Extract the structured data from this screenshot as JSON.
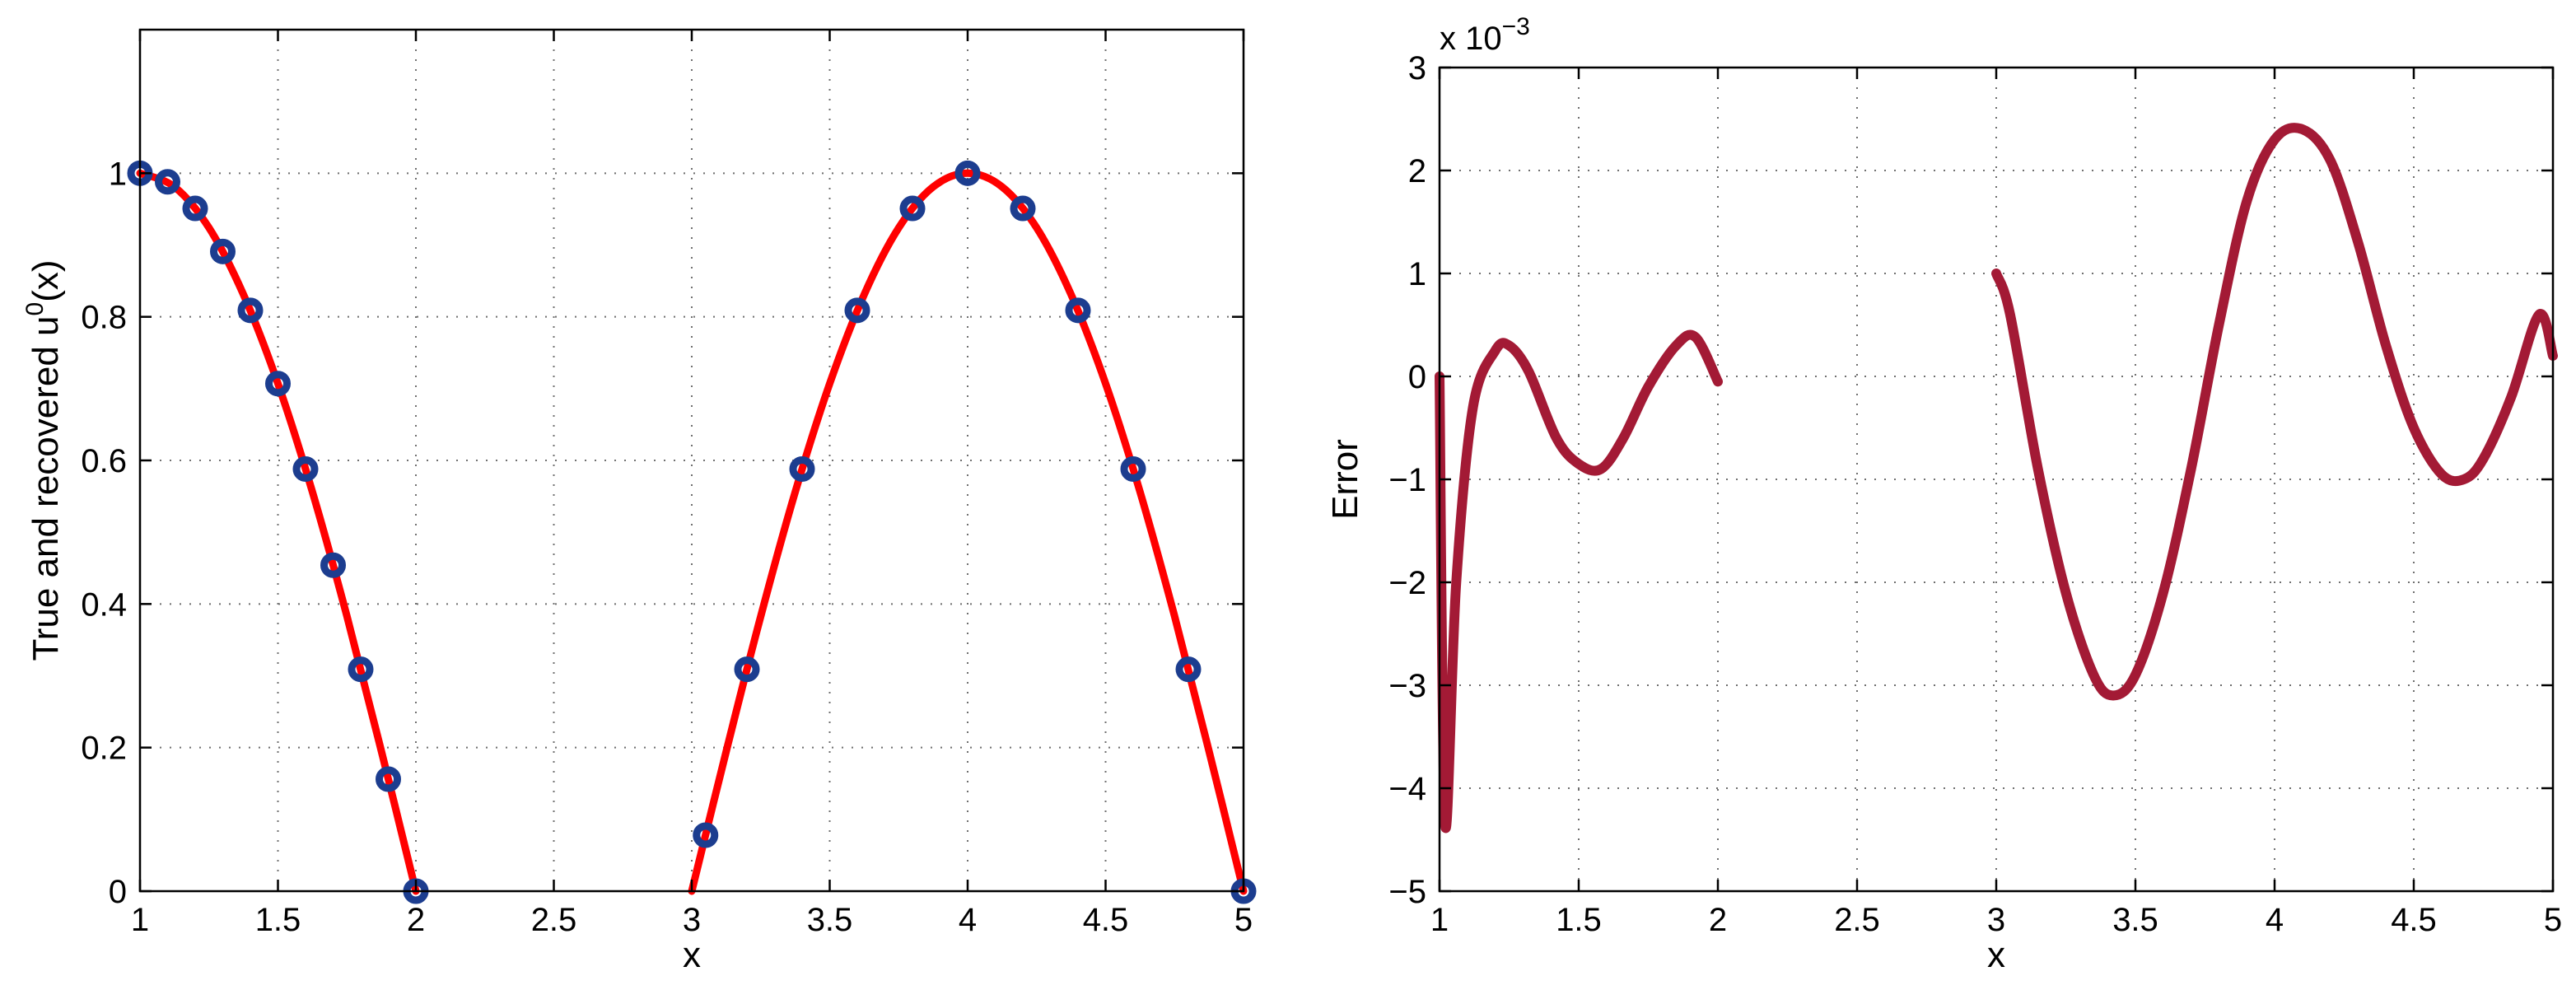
{
  "chart_data": [
    {
      "type": "line",
      "title": "",
      "xlabel": "x",
      "ylabel": "True and recovered u",
      "ylabel_sup": "0",
      "ylabel_suffix": "(x)",
      "xlim": [
        1,
        5
      ],
      "ylim": [
        0,
        1.2
      ],
      "xticks": [
        1,
        1.5,
        2,
        2.5,
        3,
        3.5,
        4,
        4.5,
        5
      ],
      "xtick_labels": [
        "1",
        "1.5",
        "2",
        "2.5",
        "3",
        "3.5",
        "4",
        "4.5",
        "5"
      ],
      "yticks": [
        0,
        0.2,
        0.4,
        0.6,
        0.8,
        1
      ],
      "ytick_labels": [
        "0",
        "0.2",
        "0.4",
        "0.6",
        "0.8",
        "1"
      ],
      "grid": true,
      "series": [
        {
          "style": "line",
          "color": "#ff0000",
          "segments": [
            {
              "x": [
                1,
                1.125,
                1.25,
                1.375,
                1.5,
                1.625,
                1.75,
                1.875,
                2
              ],
              "y": [
                1,
                0.981,
                0.924,
                0.831,
                0.707,
                0.556,
                0.383,
                0.195,
                0
              ]
            },
            {
              "x": [
                3,
                3.125,
                3.25,
                3.375,
                3.5,
                3.625,
                3.75,
                3.875,
                4,
                4.125,
                4.25,
                4.375,
                4.5,
                4.625,
                4.75,
                4.875,
                5
              ],
              "y": [
                0,
                0.195,
                0.383,
                0.556,
                0.707,
                0.831,
                0.924,
                0.981,
                1,
                0.981,
                0.924,
                0.831,
                0.707,
                0.556,
                0.383,
                0.195,
                0
              ]
            }
          ]
        },
        {
          "style": "markers",
          "marker": "circle",
          "color": "#1c3d8f",
          "segments": [
            {
              "x": [
                1,
                1.1,
                1.2,
                1.3,
                1.4,
                1.5,
                1.6,
                1.7,
                1.8,
                1.9,
                2
              ],
              "y": [
                1,
                0.988,
                0.951,
                0.891,
                0.809,
                0.707,
                0.588,
                0.454,
                0.309,
                0.156,
                0
              ]
            },
            {
              "x": [
                3.05,
                3.2,
                3.4,
                3.6,
                3.8,
                4,
                4.2,
                4.4,
                4.6,
                4.8,
                5
              ],
              "y": [
                0.078,
                0.309,
                0.588,
                0.809,
                0.951,
                1,
                0.951,
                0.809,
                0.588,
                0.309,
                0
              ]
            }
          ]
        }
      ]
    },
    {
      "type": "line",
      "title": "",
      "xlabel": "x",
      "ylabel": "Error",
      "exponent_base": "x 10",
      "exponent_power": "−3",
      "xlim": [
        1,
        5
      ],
      "ylim": [
        -5,
        3
      ],
      "xticks": [
        1,
        1.5,
        2,
        2.5,
        3,
        3.5,
        4,
        4.5,
        5
      ],
      "xtick_labels": [
        "1",
        "1.5",
        "2",
        "2.5",
        "3",
        "3.5",
        "4",
        "4.5",
        "5"
      ],
      "yticks": [
        -5,
        -4,
        -3,
        -2,
        -1,
        0,
        1,
        2,
        3
      ],
      "ytick_labels": [
        "−5",
        "−4",
        "−3",
        "−2",
        "−1",
        "0",
        "1",
        "2",
        "3"
      ],
      "grid": true,
      "series": [
        {
          "style": "line",
          "color": "#a31a35",
          "segments": [
            {
              "x": [
                1,
                1.02,
                1.06,
                1.12,
                1.2,
                1.25,
                1.32,
                1.42,
                1.5,
                1.58,
                1.66,
                1.75,
                1.85,
                1.92,
                2
              ],
              "y": [
                0,
                -4.35,
                -2.0,
                -0.3,
                0.25,
                0.3,
                0.05,
                -0.6,
                -0.85,
                -0.9,
                -0.6,
                -0.1,
                0.3,
                0.38,
                -0.05
              ]
            },
            {
              "x": [
                3,
                3.05,
                3.15,
                3.25,
                3.35,
                3.42,
                3.5,
                3.6,
                3.7,
                3.8,
                3.9,
                4.0,
                4.1,
                4.2,
                4.3,
                4.4,
                4.5,
                4.6,
                4.68,
                4.75,
                4.85,
                4.95,
                5
              ],
              "y": [
                1.0,
                0.6,
                -0.9,
                -2.1,
                -2.9,
                -3.1,
                -2.9,
                -2.1,
                -0.9,
                0.5,
                1.7,
                2.3,
                2.4,
                2.1,
                1.3,
                0.3,
                -0.5,
                -0.95,
                -1.0,
                -0.8,
                -0.2,
                0.6,
                0.2
              ]
            }
          ]
        }
      ]
    }
  ]
}
